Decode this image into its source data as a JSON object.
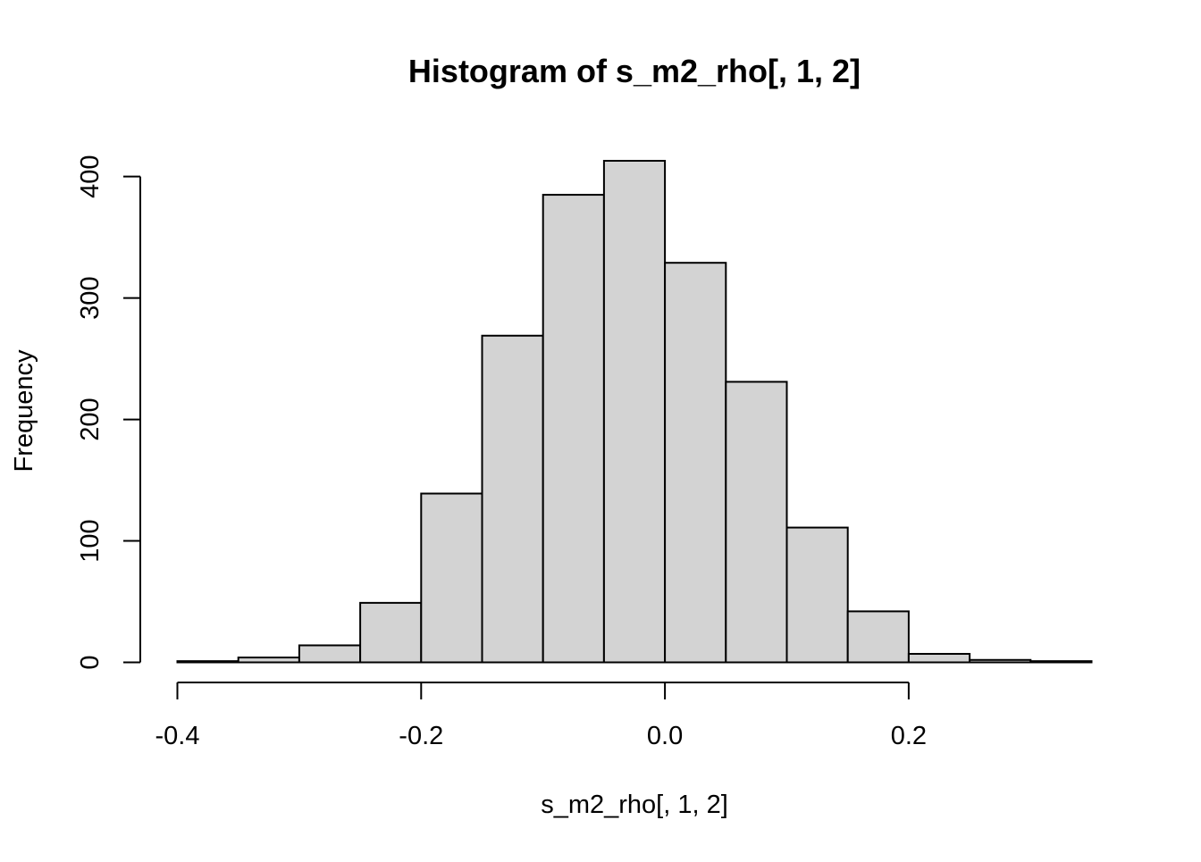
{
  "chart_data": {
    "type": "bar",
    "title": "Histogram of s_m2_rho[, 1, 2]",
    "xlabel": "s_m2_rho[, 1, 2]",
    "ylabel": "Frequency",
    "bin_edges": [
      -0.4,
      -0.35,
      -0.3,
      -0.25,
      -0.2,
      -0.15,
      -0.1,
      -0.05,
      0.0,
      0.05,
      0.1,
      0.15,
      0.2,
      0.25,
      0.3,
      0.35
    ],
    "values": [
      1,
      4,
      14,
      49,
      139,
      269,
      385,
      413,
      329,
      231,
      111,
      42,
      7,
      2,
      1
    ],
    "xlim": [
      -0.4,
      0.35
    ],
    "ylim": [
      0,
      413
    ],
    "x_ticks": [
      -0.4,
      -0.2,
      0.0,
      0.2
    ],
    "x_tick_labels": [
      "-0.4",
      "-0.2",
      "0.0",
      "0.2"
    ],
    "y_ticks": [
      0,
      100,
      200,
      300,
      400
    ],
    "y_tick_labels": [
      "0",
      "100",
      "200",
      "300",
      "400"
    ],
    "bar_fill": "#d3d3d3",
    "bar_stroke": "#000000",
    "grid": false
  }
}
